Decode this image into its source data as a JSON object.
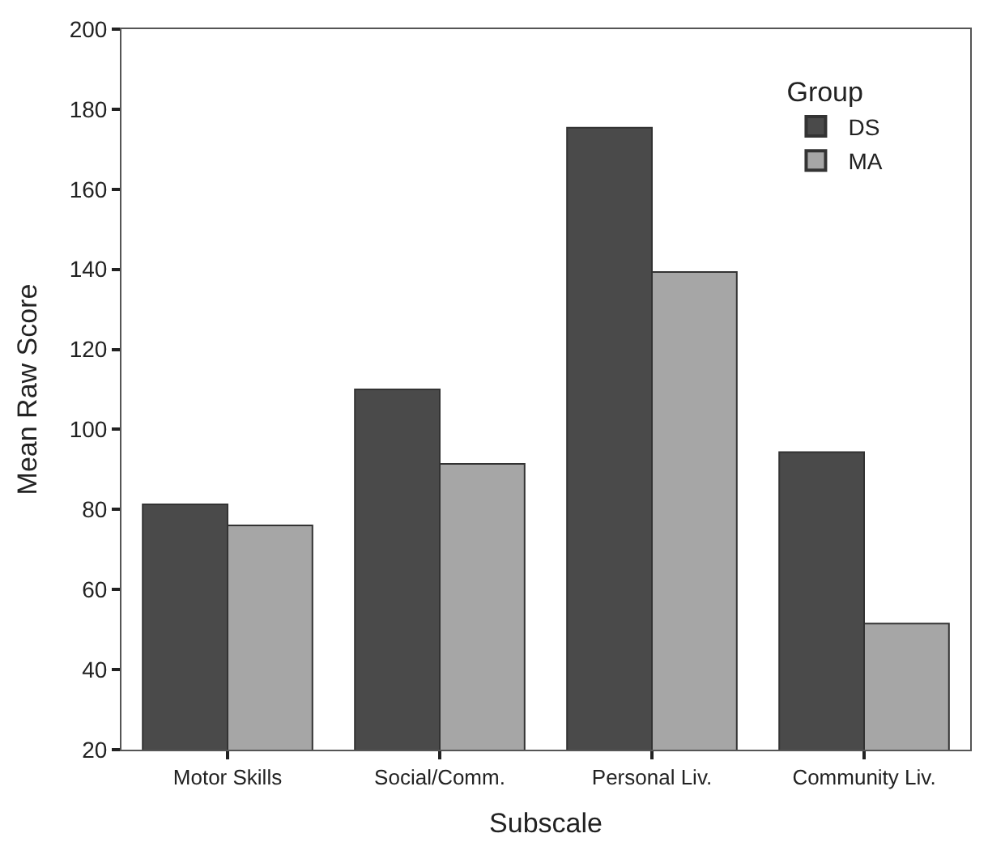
{
  "chart_data": {
    "type": "bar",
    "xlabel": "Subscale",
    "ylabel": "Mean Raw Score",
    "legend_title": "Group",
    "categories": [
      "Motor Skills",
      "Social/Comm.",
      "Personal Liv.",
      "Community Liv."
    ],
    "series": [
      {
        "name": "DS",
        "color": "#4a4a4a",
        "values": [
          81.3,
          110,
          175.4,
          94.3
        ]
      },
      {
        "name": "MA",
        "color": "#a6a6a6",
        "values": [
          76,
          91.4,
          139.3,
          51.5
        ]
      }
    ],
    "ylim": [
      20,
      200
    ],
    "yticks": [
      20,
      40,
      60,
      80,
      100,
      120,
      140,
      160,
      180,
      200
    ],
    "legend": "top right"
  }
}
